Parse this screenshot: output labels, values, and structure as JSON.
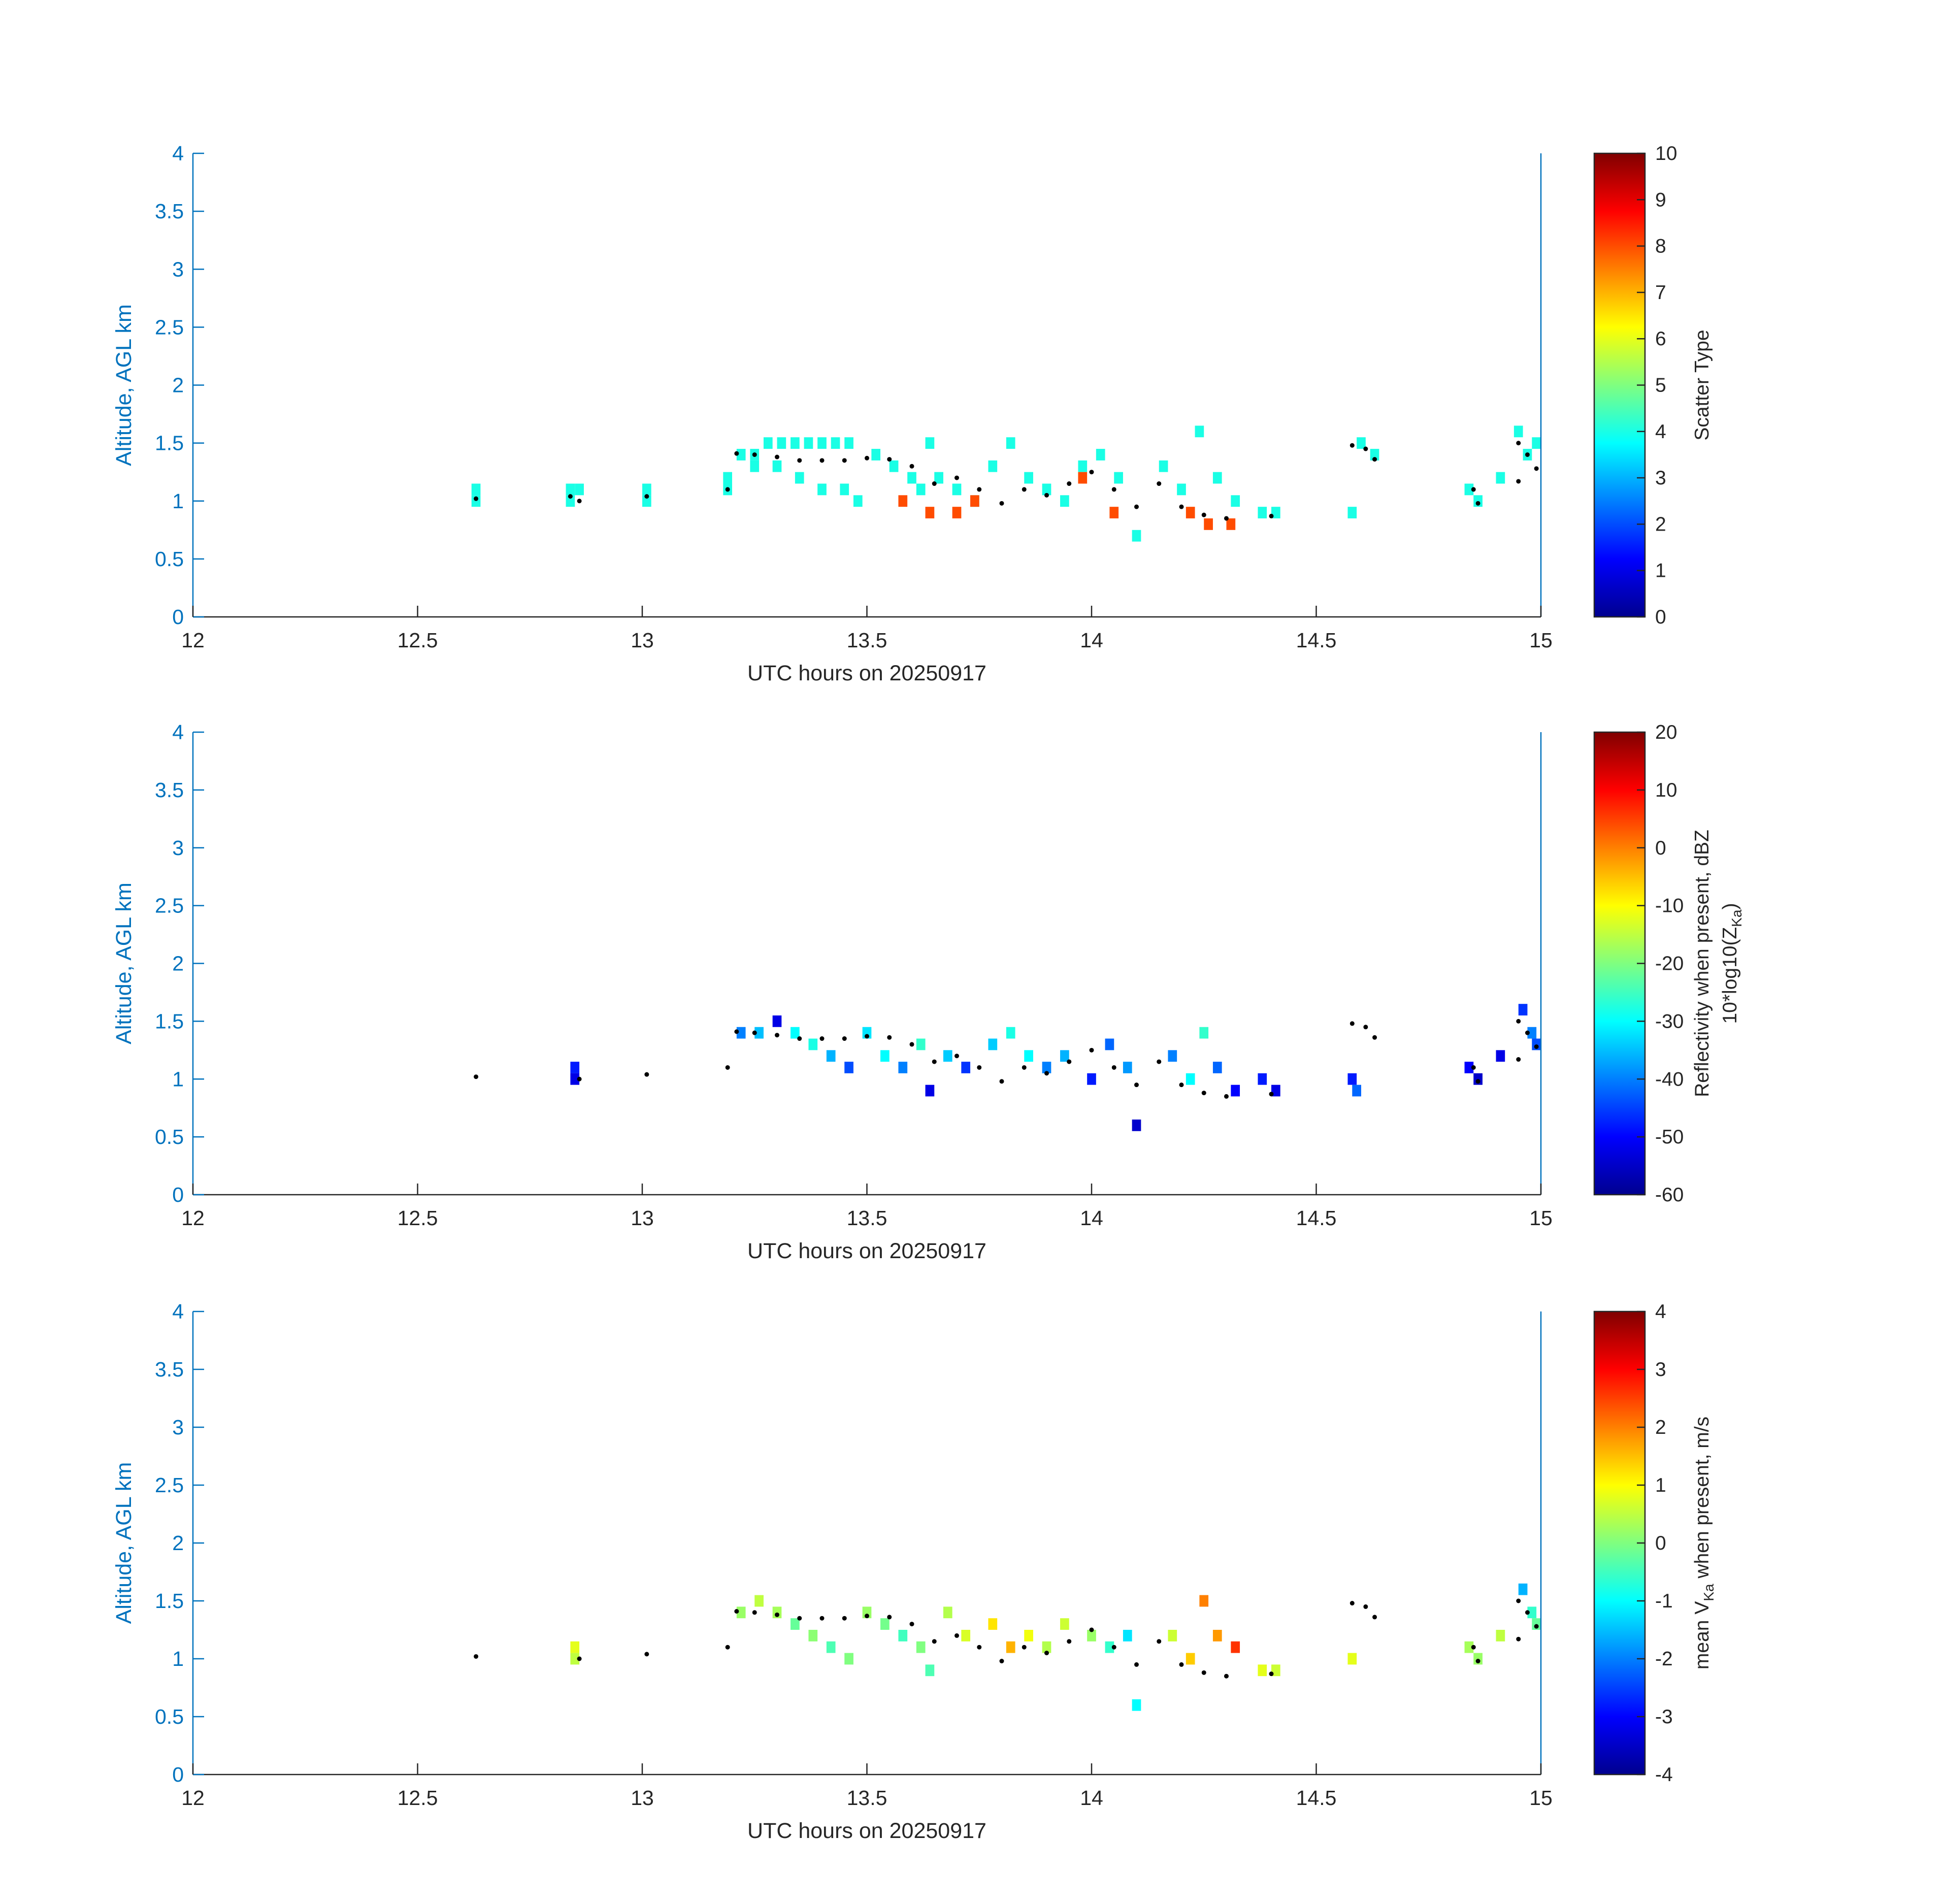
{
  "chart_data": [
    {
      "type": "heatmap",
      "xlabel": "UTC hours on 20250917",
      "ylabel": "Altitude, AGL km",
      "colorbar_label": [
        "Scatter Type"
      ],
      "xlim": [
        12,
        15
      ],
      "ylim": [
        0,
        4
      ],
      "clim": [
        0,
        10
      ],
      "xticks": [
        "12",
        "12.5",
        "13",
        "13.5",
        "14",
        "14.5",
        "15"
      ],
      "yticks": [
        "0",
        "0.5",
        "1",
        "1.5",
        "2",
        "2.5",
        "3",
        "3.5",
        "4"
      ],
      "cticks": [
        "0",
        "1",
        "2",
        "3",
        "4",
        "5",
        "6",
        "7",
        "8",
        "9",
        "10"
      ],
      "colormap": "jet",
      "cell_size": {
        "dt_hours": 0.02,
        "dz_km": 0.1
      },
      "cells": [
        [
          12.63,
          1.1,
          4
        ],
        [
          12.63,
          1.0,
          4
        ],
        [
          12.84,
          1.1,
          4
        ],
        [
          12.86,
          1.1,
          4
        ],
        [
          12.84,
          1.0,
          4
        ],
        [
          13.01,
          1.1,
          4
        ],
        [
          13.01,
          1.0,
          4
        ],
        [
          13.19,
          1.2,
          4
        ],
        [
          13.19,
          1.1,
          4
        ],
        [
          13.22,
          1.4,
          4
        ],
        [
          13.25,
          1.4,
          4
        ],
        [
          13.28,
          1.5,
          4
        ],
        [
          13.31,
          1.5,
          4
        ],
        [
          13.34,
          1.5,
          4
        ],
        [
          13.37,
          1.5,
          4
        ],
        [
          13.4,
          1.5,
          4
        ],
        [
          13.43,
          1.5,
          4
        ],
        [
          13.46,
          1.5,
          4
        ],
        [
          13.25,
          1.3,
          4
        ],
        [
          13.3,
          1.3,
          4
        ],
        [
          13.35,
          1.2,
          4
        ],
        [
          13.4,
          1.1,
          4
        ],
        [
          13.45,
          1.1,
          4
        ],
        [
          13.48,
          1.0,
          4
        ],
        [
          13.52,
          1.4,
          4
        ],
        [
          13.56,
          1.3,
          4
        ],
        [
          13.6,
          1.2,
          4
        ],
        [
          13.62,
          1.1,
          4
        ],
        [
          13.64,
          1.5,
          4
        ],
        [
          13.66,
          1.2,
          4
        ],
        [
          13.7,
          1.1,
          4
        ],
        [
          13.74,
          1.0,
          4
        ],
        [
          13.78,
          1.3,
          4
        ],
        [
          13.82,
          1.5,
          4
        ],
        [
          13.86,
          1.2,
          4
        ],
        [
          13.9,
          1.1,
          4
        ],
        [
          13.94,
          1.0,
          4
        ],
        [
          13.98,
          1.3,
          4
        ],
        [
          14.02,
          1.4,
          4
        ],
        [
          14.06,
          1.2,
          4
        ],
        [
          14.1,
          0.7,
          4
        ],
        [
          14.16,
          1.3,
          4
        ],
        [
          14.2,
          1.1,
          4
        ],
        [
          14.24,
          1.6,
          4
        ],
        [
          14.28,
          1.2,
          4
        ],
        [
          14.32,
          1.0,
          4
        ],
        [
          14.38,
          0.9,
          4
        ],
        [
          14.41,
          0.9,
          4
        ],
        [
          14.58,
          0.9,
          4
        ],
        [
          14.6,
          1.5,
          4
        ],
        [
          14.63,
          1.4,
          4
        ],
        [
          14.84,
          1.1,
          4
        ],
        [
          14.86,
          1.0,
          4
        ],
        [
          14.91,
          1.2,
          4
        ],
        [
          14.95,
          1.6,
          4
        ],
        [
          14.97,
          1.4,
          4
        ],
        [
          14.99,
          1.5,
          4
        ],
        [
          13.58,
          1.0,
          8
        ],
        [
          13.64,
          0.9,
          8
        ],
        [
          13.7,
          0.9,
          8
        ],
        [
          13.74,
          1.0,
          8
        ],
        [
          13.98,
          1.2,
          8
        ],
        [
          14.05,
          0.9,
          8
        ],
        [
          14.22,
          0.9,
          8
        ],
        [
          14.26,
          0.8,
          8
        ],
        [
          14.31,
          0.8,
          8
        ]
      ],
      "points": [
        [
          12.63,
          1.02
        ],
        [
          12.84,
          1.04
        ],
        [
          12.86,
          1.0
        ],
        [
          13.01,
          1.04
        ],
        [
          13.19,
          1.1
        ],
        [
          13.21,
          1.41
        ],
        [
          13.25,
          1.4
        ],
        [
          13.3,
          1.38
        ],
        [
          13.35,
          1.35
        ],
        [
          13.4,
          1.35
        ],
        [
          13.45,
          1.35
        ],
        [
          13.5,
          1.37
        ],
        [
          13.55,
          1.36
        ],
        [
          13.6,
          1.3
        ],
        [
          13.65,
          1.15
        ],
        [
          13.7,
          1.2
        ],
        [
          13.75,
          1.1
        ],
        [
          13.8,
          0.98
        ],
        [
          13.85,
          1.1
        ],
        [
          13.9,
          1.05
        ],
        [
          13.95,
          1.15
        ],
        [
          14.0,
          1.25
        ],
        [
          14.05,
          1.1
        ],
        [
          14.1,
          0.95
        ],
        [
          14.15,
          1.15
        ],
        [
          14.2,
          0.95
        ],
        [
          14.25,
          0.88
        ],
        [
          14.3,
          0.85
        ],
        [
          14.4,
          0.87
        ],
        [
          14.58,
          1.48
        ],
        [
          14.61,
          1.45
        ],
        [
          14.63,
          1.36
        ],
        [
          14.85,
          1.1
        ],
        [
          14.86,
          0.98
        ],
        [
          14.95,
          1.5
        ],
        [
          14.97,
          1.4
        ],
        [
          14.99,
          1.28
        ],
        [
          14.95,
          1.17
        ]
      ]
    },
    {
      "type": "heatmap",
      "xlabel": "UTC hours on 20250917",
      "ylabel": "Altitude, AGL km",
      "colorbar_label": [
        "Reflectivity when present, dBZ",
        "10*log10(Z",
        "Ka",
        ")"
      ],
      "xlim": [
        12,
        15
      ],
      "ylim": [
        0,
        4
      ],
      "clim": [
        -60,
        20
      ],
      "xticks": [
        "12",
        "12.5",
        "13",
        "13.5",
        "14",
        "14.5",
        "15"
      ],
      "yticks": [
        "0",
        "0.5",
        "1",
        "1.5",
        "2",
        "2.5",
        "3",
        "3.5",
        "4"
      ],
      "cticks": [
        "-60",
        "-50",
        "-40",
        "-30",
        "-20",
        "-10",
        "0",
        "10",
        "20"
      ],
      "colormap": "jet",
      "cell_size": {
        "dt_hours": 0.02,
        "dz_km": 0.1
      },
      "cells": [
        [
          12.85,
          1.1,
          -48
        ],
        [
          12.85,
          1.0,
          -52
        ],
        [
          13.22,
          1.4,
          -40
        ],
        [
          13.26,
          1.4,
          -35
        ],
        [
          13.3,
          1.5,
          -52
        ],
        [
          13.34,
          1.4,
          -30
        ],
        [
          13.38,
          1.3,
          -28
        ],
        [
          13.42,
          1.2,
          -36
        ],
        [
          13.46,
          1.1,
          -44
        ],
        [
          13.5,
          1.4,
          -32
        ],
        [
          13.54,
          1.2,
          -30
        ],
        [
          13.58,
          1.1,
          -40
        ],
        [
          13.62,
          1.3,
          -26
        ],
        [
          13.64,
          0.9,
          -52
        ],
        [
          13.68,
          1.2,
          -34
        ],
        [
          13.72,
          1.1,
          -46
        ],
        [
          13.78,
          1.3,
          -34
        ],
        [
          13.82,
          1.4,
          -28
        ],
        [
          13.86,
          1.2,
          -30
        ],
        [
          13.9,
          1.1,
          -40
        ],
        [
          13.94,
          1.2,
          -36
        ],
        [
          14.0,
          1.0,
          -48
        ],
        [
          14.04,
          1.3,
          -42
        ],
        [
          14.08,
          1.1,
          -38
        ],
        [
          14.1,
          0.6,
          -54
        ],
        [
          14.18,
          1.2,
          -40
        ],
        [
          14.22,
          1.0,
          -30
        ],
        [
          14.25,
          1.4,
          -26
        ],
        [
          14.28,
          1.1,
          -42
        ],
        [
          14.32,
          0.9,
          -50
        ],
        [
          14.38,
          1.0,
          -48
        ],
        [
          14.41,
          0.9,
          -52
        ],
        [
          14.58,
          1.0,
          -48
        ],
        [
          14.59,
          0.9,
          -42
        ],
        [
          14.84,
          1.1,
          -50
        ],
        [
          14.86,
          1.0,
          -54
        ],
        [
          14.91,
          1.2,
          -52
        ],
        [
          14.96,
          1.6,
          -46
        ],
        [
          14.98,
          1.4,
          -40
        ],
        [
          14.99,
          1.3,
          -44
        ]
      ],
      "points": [
        [
          12.63,
          1.02
        ],
        [
          12.86,
          1.0
        ],
        [
          13.01,
          1.04
        ],
        [
          13.19,
          1.1
        ],
        [
          13.21,
          1.41
        ],
        [
          13.25,
          1.4
        ],
        [
          13.3,
          1.38
        ],
        [
          13.35,
          1.35
        ],
        [
          13.4,
          1.35
        ],
        [
          13.45,
          1.35
        ],
        [
          13.5,
          1.37
        ],
        [
          13.55,
          1.36
        ],
        [
          13.6,
          1.3
        ],
        [
          13.65,
          1.15
        ],
        [
          13.7,
          1.2
        ],
        [
          13.75,
          1.1
        ],
        [
          13.8,
          0.98
        ],
        [
          13.85,
          1.1
        ],
        [
          13.9,
          1.05
        ],
        [
          13.95,
          1.15
        ],
        [
          14.0,
          1.25
        ],
        [
          14.05,
          1.1
        ],
        [
          14.1,
          0.95
        ],
        [
          14.15,
          1.15
        ],
        [
          14.2,
          0.95
        ],
        [
          14.25,
          0.88
        ],
        [
          14.3,
          0.85
        ],
        [
          14.4,
          0.87
        ],
        [
          14.58,
          1.48
        ],
        [
          14.61,
          1.45
        ],
        [
          14.63,
          1.36
        ],
        [
          14.85,
          1.1
        ],
        [
          14.86,
          0.98
        ],
        [
          14.95,
          1.5
        ],
        [
          14.97,
          1.4
        ],
        [
          14.99,
          1.28
        ],
        [
          14.95,
          1.17
        ]
      ]
    },
    {
      "type": "heatmap",
      "xlabel": "UTC hours on 20250917",
      "ylabel": "Altitude, AGL km",
      "colorbar_label": [
        "mean V",
        "Ka",
        " when present, m/s"
      ],
      "xlim": [
        12,
        15
      ],
      "ylim": [
        0,
        4
      ],
      "clim": [
        -4,
        4
      ],
      "xticks": [
        "12",
        "12.5",
        "13",
        "13.5",
        "14",
        "14.5",
        "15"
      ],
      "yticks": [
        "0",
        "0.5",
        "1",
        "1.5",
        "2",
        "2.5",
        "3",
        "3.5",
        "4"
      ],
      "cticks": [
        "-4",
        "-3",
        "-2",
        "-1",
        "0",
        "1",
        "2",
        "3",
        "4"
      ],
      "colormap": "jet",
      "cell_size": {
        "dt_hours": 0.02,
        "dz_km": 0.1
      },
      "cells": [
        [
          12.85,
          1.1,
          0.8
        ],
        [
          12.85,
          1.0,
          0.5
        ],
        [
          13.22,
          1.4,
          0.2
        ],
        [
          13.26,
          1.5,
          0.5
        ],
        [
          13.3,
          1.4,
          0.3
        ],
        [
          13.34,
          1.3,
          -0.2
        ],
        [
          13.38,
          1.2,
          0.1
        ],
        [
          13.42,
          1.1,
          -0.4
        ],
        [
          13.46,
          1.0,
          0.0
        ],
        [
          13.5,
          1.4,
          0.2
        ],
        [
          13.54,
          1.3,
          -0.1
        ],
        [
          13.58,
          1.2,
          -0.5
        ],
        [
          13.62,
          1.1,
          0.0
        ],
        [
          13.64,
          0.9,
          -0.4
        ],
        [
          13.68,
          1.4,
          0.4
        ],
        [
          13.72,
          1.2,
          0.7
        ],
        [
          13.78,
          1.3,
          1.2
        ],
        [
          13.82,
          1.1,
          1.6
        ],
        [
          13.86,
          1.2,
          0.9
        ],
        [
          13.9,
          1.1,
          0.4
        ],
        [
          13.94,
          1.3,
          0.6
        ],
        [
          14.0,
          1.2,
          0.2
        ],
        [
          14.04,
          1.1,
          -0.6
        ],
        [
          14.08,
          1.2,
          -1.2
        ],
        [
          14.1,
          0.6,
          -1.0
        ],
        [
          14.18,
          1.2,
          0.6
        ],
        [
          14.22,
          1.0,
          1.4
        ],
        [
          14.25,
          1.5,
          2.0
        ],
        [
          14.28,
          1.2,
          1.8
        ],
        [
          14.32,
          1.1,
          2.6
        ],
        [
          14.38,
          0.9,
          0.8
        ],
        [
          14.41,
          0.9,
          0.6
        ],
        [
          14.58,
          1.0,
          0.8
        ],
        [
          14.84,
          1.1,
          0.3
        ],
        [
          14.86,
          1.0,
          0.2
        ],
        [
          14.91,
          1.2,
          0.5
        ],
        [
          14.96,
          1.6,
          -1.6
        ],
        [
          14.98,
          1.4,
          -0.6
        ],
        [
          14.99,
          1.3,
          -0.2
        ]
      ],
      "points": [
        [
          12.63,
          1.02
        ],
        [
          12.86,
          1.0
        ],
        [
          13.01,
          1.04
        ],
        [
          13.19,
          1.1
        ],
        [
          13.21,
          1.41
        ],
        [
          13.25,
          1.4
        ],
        [
          13.3,
          1.38
        ],
        [
          13.35,
          1.35
        ],
        [
          13.4,
          1.35
        ],
        [
          13.45,
          1.35
        ],
        [
          13.5,
          1.37
        ],
        [
          13.55,
          1.36
        ],
        [
          13.6,
          1.3
        ],
        [
          13.65,
          1.15
        ],
        [
          13.7,
          1.2
        ],
        [
          13.75,
          1.1
        ],
        [
          13.8,
          0.98
        ],
        [
          13.85,
          1.1
        ],
        [
          13.9,
          1.05
        ],
        [
          13.95,
          1.15
        ],
        [
          14.0,
          1.25
        ],
        [
          14.05,
          1.1
        ],
        [
          14.1,
          0.95
        ],
        [
          14.15,
          1.15
        ],
        [
          14.2,
          0.95
        ],
        [
          14.25,
          0.88
        ],
        [
          14.3,
          0.85
        ],
        [
          14.4,
          0.87
        ],
        [
          14.58,
          1.48
        ],
        [
          14.61,
          1.45
        ],
        [
          14.63,
          1.36
        ],
        [
          14.85,
          1.1
        ],
        [
          14.86,
          0.98
        ],
        [
          14.95,
          1.5
        ],
        [
          14.97,
          1.4
        ],
        [
          14.99,
          1.28
        ],
        [
          14.95,
          1.17
        ]
      ]
    }
  ]
}
